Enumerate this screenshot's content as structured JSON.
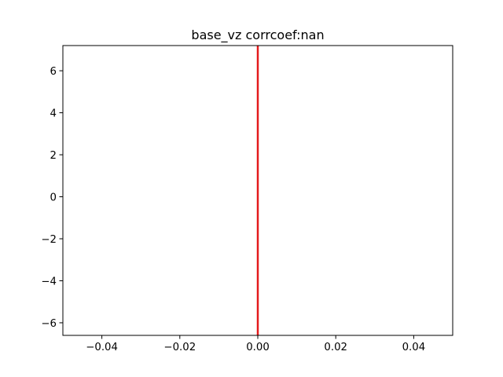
{
  "chart_data": {
    "type": "line",
    "title": "base_vz corrcoef:nan",
    "xlabel": "",
    "ylabel": "",
    "xlim": [
      -0.05,
      0.05
    ],
    "ylim": [
      -6.6,
      7.2
    ],
    "x_ticks": [
      -0.04,
      -0.02,
      0.0,
      0.02,
      0.04
    ],
    "x_tick_labels": [
      "−0.04",
      "−0.02",
      "0.00",
      "0.02",
      "0.04"
    ],
    "y_ticks": [
      -6,
      -4,
      -2,
      0,
      2,
      4,
      6
    ],
    "y_tick_labels": [
      "−6",
      "−4",
      "−2",
      "0",
      "2",
      "4",
      "6"
    ],
    "grid": false,
    "series": [
      {
        "color": "#e41a1c",
        "x": [
          0,
          0
        ],
        "y": [
          -6.6,
          7.2
        ]
      }
    ]
  }
}
